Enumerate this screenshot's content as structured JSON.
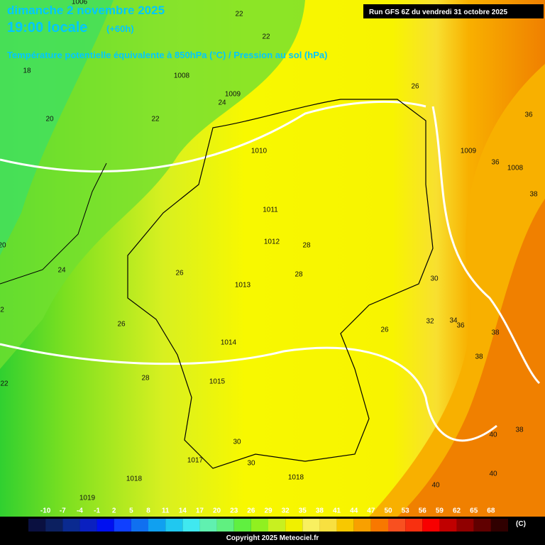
{
  "header": {
    "date": "dimanche 2 novembre 2025",
    "time": "19:00 locale",
    "offset": "(+60h)",
    "run": "Run GFS 6Z du vendredi 31 octobre 2025",
    "subtitle": "Température potentielle équivalente à 850hPa (°C) / Pression au sol (hPa)"
  },
  "map": {
    "labels": [
      "22",
      "22",
      "1006",
      "18",
      "1008",
      "1009",
      "24",
      "20",
      "22",
      "26",
      "36",
      "1009",
      "1010",
      "36",
      "1008",
      "38",
      "1011",
      "1012",
      "28",
      "20",
      "24",
      "26",
      "28",
      "1013",
      "30",
      "2",
      "26",
      "32",
      "34",
      "36",
      "26",
      "38",
      "1014",
      "38",
      "28",
      "1015",
      "22",
      "38",
      "30",
      "40",
      "1017",
      "30",
      "40",
      "1018",
      "1018",
      "40",
      "1019"
    ]
  },
  "legend": {
    "ticks": [
      -10,
      -7,
      -4,
      -1,
      2,
      5,
      8,
      11,
      14,
      17,
      20,
      23,
      26,
      29,
      32,
      35,
      38,
      41,
      44,
      47,
      50,
      53,
      56,
      59,
      62,
      65,
      68
    ],
    "colors": [
      "#0a1040",
      "#0c2060",
      "#0a2a90",
      "#0a20c0",
      "#0010f0",
      "#1040ff",
      "#1070f0",
      "#10a0f0",
      "#20c8f0",
      "#40e8f0",
      "#60f0b0",
      "#60f080",
      "#60f040",
      "#90f020",
      "#c8f020",
      "#f0f000",
      "#f8f060",
      "#f8e040",
      "#f8c800",
      "#f8a000",
      "#f87800",
      "#f85020",
      "#f83010",
      "#f80000",
      "#c00000",
      "#900000",
      "#600000",
      "#300000"
    ],
    "unit": "(C)"
  },
  "footer": {
    "copyright": "Copyright 2025 Meteociel.fr"
  }
}
